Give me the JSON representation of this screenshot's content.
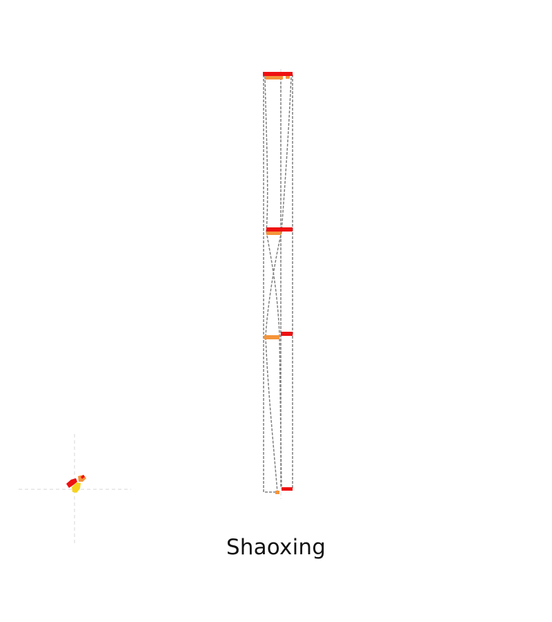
{
  "title": "Shaoxing",
  "colors": {
    "district_fill_primary": "#ee1111",
    "district_fill_secondary": "#f4943a",
    "district_fill_tertiary": "#f6d21c",
    "boundary_stroke": "#7f7f7f",
    "axis_guide": "#d6d6d6",
    "background": "#ffffff"
  },
  "legend": []
}
